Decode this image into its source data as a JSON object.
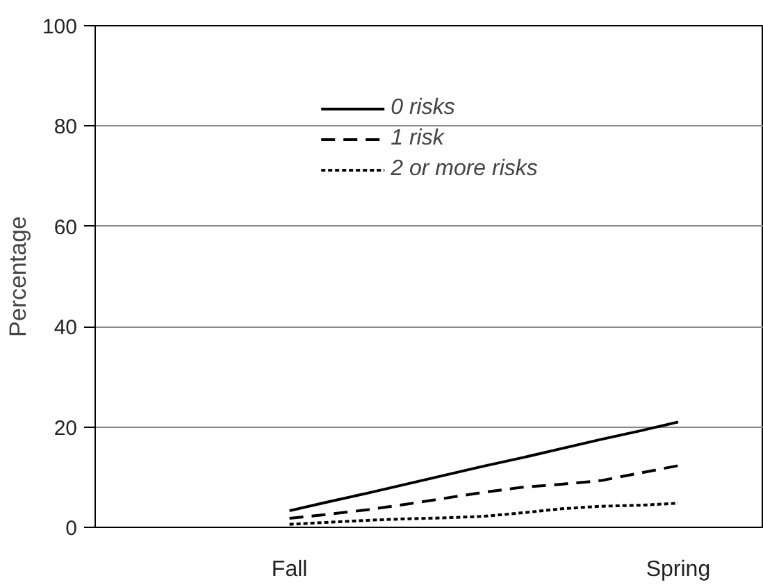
{
  "chart_data": {
    "type": "line",
    "ylabel": "Percentage",
    "categories": [
      "Fall",
      null,
      null,
      null,
      null,
      null,
      null,
      null,
      null,
      null,
      "Spring"
    ],
    "ylim": [
      0,
      100
    ],
    "yticks": [
      0,
      20,
      40,
      60,
      80,
      100
    ],
    "grid": "y",
    "legend": "top",
    "series": [
      {
        "name": "0 risks",
        "color": "#000000",
        "line_style": "solid",
        "values": [
          3.3,
          5.1,
          6.8,
          8.6,
          10.4,
          12.2,
          13.9,
          15.7,
          17.5,
          19.2,
          21.0
        ]
      },
      {
        "name": "1 risk",
        "color": "#000000",
        "line_style": "dashed",
        "values": [
          1.8,
          2.6,
          3.5,
          4.6,
          5.8,
          7.0,
          8.0,
          8.6,
          9.3,
          10.8,
          12.3
        ]
      },
      {
        "name": "2 or more risks",
        "color": "#000000",
        "line_style": "dotted",
        "values": [
          0.6,
          1.0,
          1.4,
          1.7,
          1.9,
          2.2,
          2.9,
          3.7,
          4.2,
          4.4,
          4.8
        ]
      }
    ]
  }
}
